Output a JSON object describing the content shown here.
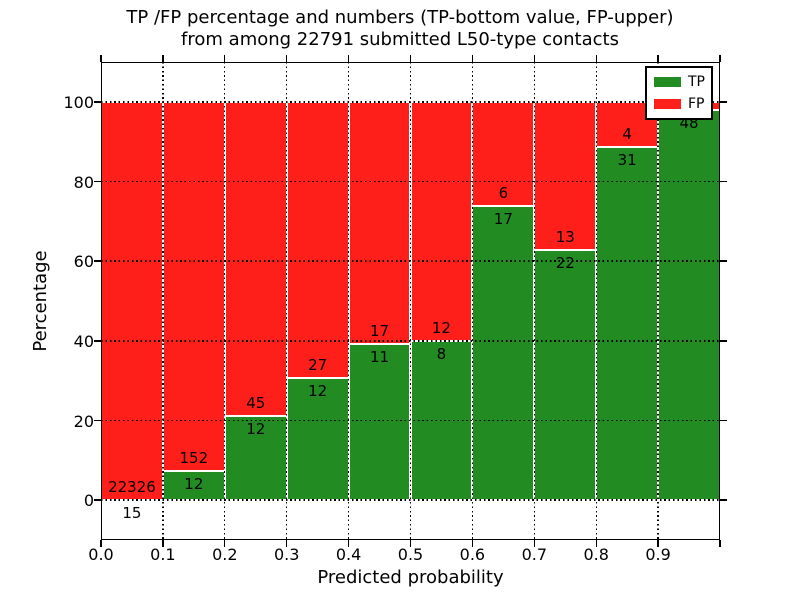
{
  "figure": {
    "title_line1": "TP /FP percentage and numbers (TP-bottom value, FP-upper)",
    "title_line2": "from among 22791 submitted L50-type contacts"
  },
  "axes": {
    "xlabel": "Predicted probability",
    "ylabel": "Percentage",
    "x_tick_labels": [
      "0.0",
      "0.1",
      "0.2",
      "0.3",
      "0.4",
      "0.5",
      "0.6",
      "0.7",
      "0.8",
      "0.9"
    ],
    "y_tick_labels": [
      "0",
      "20",
      "40",
      "60",
      "80",
      "100"
    ],
    "y_tick_values": [
      0,
      20,
      40,
      60,
      80,
      100
    ]
  },
  "legend": {
    "items": [
      {
        "label": "TP",
        "color": "#228b22"
      },
      {
        "label": "FP",
        "color": "#fe1f1a"
      }
    ]
  },
  "colors": {
    "tp_green": "#228b22",
    "fp_red": "#fe1f1a",
    "bar_edge": "#ffffff",
    "text": "#000000"
  },
  "chart_data": {
    "type": "bar",
    "stacked": true,
    "title": "TP /FP percentage and numbers (TP-bottom value, FP-upper) from among 22791 submitted L50-type contacts",
    "xlabel": "Predicted probability",
    "ylabel": "Percentage",
    "xlim": [
      0.0,
      1.0
    ],
    "ylim": [
      -10,
      110
    ],
    "grid": "dotted",
    "legend_position": "upper right",
    "categories": [
      "0.0-0.1",
      "0.1-0.2",
      "0.2-0.3",
      "0.3-0.4",
      "0.4-0.5",
      "0.5-0.6",
      "0.6-0.7",
      "0.7-0.8",
      "0.8-0.9",
      "0.9-1.0"
    ],
    "series": [
      {
        "name": "TP",
        "color": "#228b22",
        "counts": [
          15,
          12,
          12,
          12,
          11,
          8,
          17,
          22,
          31,
          48
        ]
      },
      {
        "name": "FP",
        "color": "#fe1f1a",
        "counts": [
          22326,
          152,
          45,
          27,
          17,
          12,
          6,
          13,
          4,
          null
        ]
      }
    ],
    "tp_percent": [
      0.07,
      7.32,
      21.05,
      30.77,
      39.29,
      40.0,
      73.91,
      62.86,
      88.57,
      98.0
    ]
  }
}
